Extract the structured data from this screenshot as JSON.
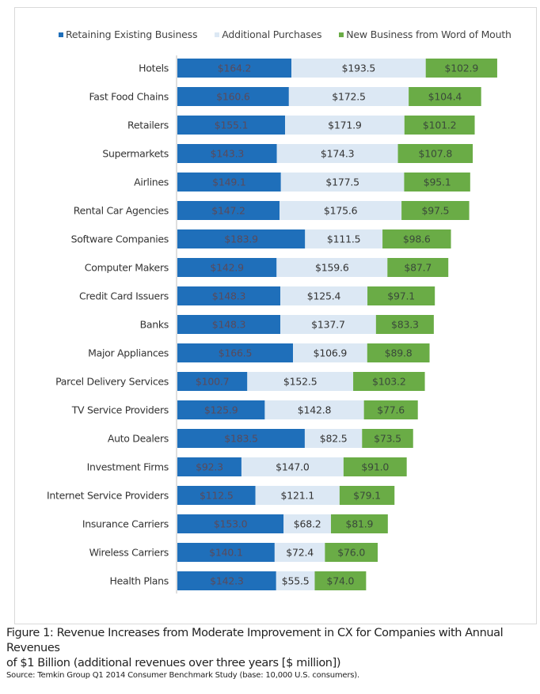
{
  "chart_data": {
    "type": "bar",
    "orientation": "horizontal",
    "stacked": true,
    "title": "Figure 1: Revenue Increases from Moderate Improvement in CX for Companies with Annual Revenues of $1 Billion  (additional revenues over three years [$ million])",
    "xlabel": "",
    "ylabel": "",
    "value_prefix": "$",
    "legend_position": "top",
    "grid": false,
    "categories": [
      "Hotels",
      "Fast Food Chains",
      "Retailers",
      "Supermarkets",
      "Airlines",
      "Rental Car Agencies",
      "Software Companies",
      "Computer Makers",
      "Credit Card Issuers",
      "Banks",
      "Major Appliances",
      "Parcel Delivery Services",
      "TV Service Providers",
      "Auto Dealers",
      "Investment Firms",
      "Internet Service Providers",
      "Insurance Carriers",
      "Wireless Carriers",
      "Health  Plans"
    ],
    "series": [
      {
        "name": "Retaining Existing Business",
        "color": "#1f6fba",
        "label_color": "#5a4a5a",
        "values": [
          164.2,
          160.6,
          155.1,
          143.3,
          149.1,
          147.2,
          183.9,
          142.9,
          148.3,
          148.3,
          166.5,
          100.7,
          125.9,
          183.5,
          92.3,
          112.5,
          153.0,
          140.1,
          142.3
        ]
      },
      {
        "name": "Additional Purchases",
        "color": "#dce8f4",
        "label_color": "#333333",
        "values": [
          193.5,
          172.5,
          171.9,
          174.3,
          177.5,
          175.6,
          111.5,
          159.6,
          125.4,
          137.7,
          106.9,
          152.5,
          142.8,
          82.5,
          147.0,
          121.1,
          68.2,
          72.4,
          55.5
        ]
      },
      {
        "name": "New Business from Word of Mouth",
        "color": "#6aac46",
        "label_color": "#3a4a3a",
        "values": [
          102.9,
          104.4,
          101.2,
          107.8,
          95.1,
          97.5,
          98.6,
          87.7,
          97.1,
          83.3,
          89.8,
          103.2,
          77.6,
          73.5,
          91.0,
          79.1,
          81.9,
          76.0,
          74.0
        ]
      }
    ],
    "xlim": [
      0,
      465
    ]
  },
  "caption": {
    "line1": "Figure 1: Revenue Increases from Moderate Improvement in CX for Companies with Annual Revenues",
    "line2": "of $1 Billion  (additional revenues over three years [$ million])"
  },
  "source": "Source: Temkin Group Q1 2014 Consumer Benchmark Study (base: 10,000 U.S. consumers)."
}
